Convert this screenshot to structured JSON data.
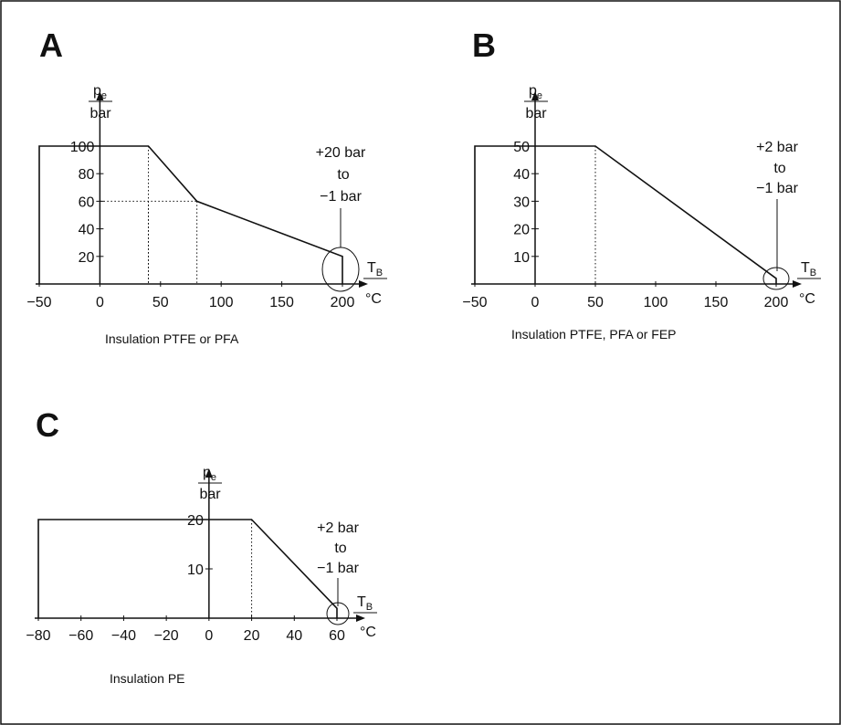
{
  "chart_data": [
    {
      "panel": "A",
      "type": "line",
      "x_axis": {
        "label": "T",
        "label_sub": "B",
        "unit": "°C",
        "ticks": [
          -50,
          0,
          50,
          100,
          150,
          200
        ],
        "range": [
          -50,
          200
        ]
      },
      "y_axis": {
        "label": "p",
        "label_sub": "e",
        "unit": "bar",
        "ticks": [
          20,
          40,
          60,
          80,
          100
        ],
        "range": [
          0,
          100
        ]
      },
      "series": [
        {
          "points": [
            [
              -50,
              100
            ],
            [
              40,
              100
            ],
            [
              80,
              60
            ],
            [
              200,
              20
            ]
          ]
        }
      ],
      "dotted_guides": [
        [
          40,
          100
        ],
        [
          80,
          60
        ]
      ],
      "annotation": [
        "+20 bar",
        "to",
        "−1 bar"
      ],
      "caption": "Insulation PTFE or PFA"
    },
    {
      "panel": "B",
      "type": "line",
      "x_axis": {
        "label": "T",
        "label_sub": "B",
        "unit": "°C",
        "ticks": [
          -50,
          0,
          50,
          100,
          150,
          200
        ],
        "range": [
          -50,
          200
        ]
      },
      "y_axis": {
        "label": "p",
        "label_sub": "e",
        "unit": "bar",
        "ticks": [
          10,
          20,
          30,
          40,
          50
        ],
        "range": [
          0,
          50
        ]
      },
      "series": [
        {
          "points": [
            [
              -50,
              50
            ],
            [
              50,
              50
            ],
            [
              200,
              2
            ]
          ]
        }
      ],
      "dotted_guides": [
        [
          50,
          50
        ]
      ],
      "annotation": [
        "+2 bar",
        "to",
        "−1 bar"
      ],
      "caption": "Insulation PTFE, PFA or FEP"
    },
    {
      "panel": "C",
      "type": "line",
      "x_axis": {
        "label": "T",
        "label_sub": "B",
        "unit": "°C",
        "ticks": [
          -80,
          -60,
          -40,
          -20,
          0,
          20,
          40,
          60
        ],
        "range": [
          -80,
          60
        ]
      },
      "y_axis": {
        "label": "p",
        "label_sub": "e",
        "unit": "bar",
        "ticks": [
          10,
          20
        ],
        "range": [
          0,
          20
        ]
      },
      "series": [
        {
          "points": [
            [
              -80,
              20
            ],
            [
              20,
              20
            ],
            [
              60,
              2
            ]
          ]
        }
      ],
      "dotted_guides": [
        [
          20,
          20
        ]
      ],
      "annotation": [
        "+2 bar",
        "to",
        "−1 bar"
      ],
      "caption": "Insulation PE"
    }
  ]
}
